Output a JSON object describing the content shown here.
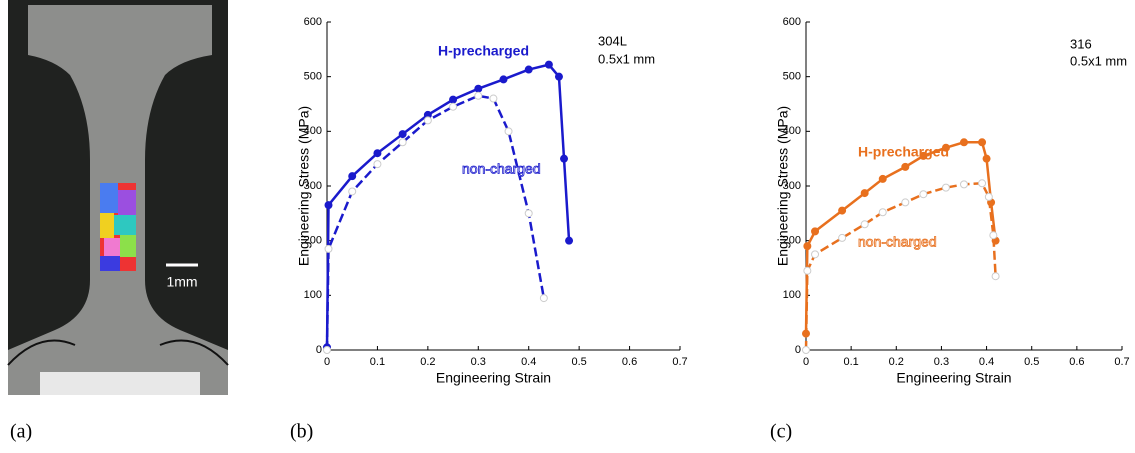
{
  "panel_labels": [
    "(a)",
    "(b)",
    "(c)"
  ],
  "scale_label": "1mm",
  "chart_data": [
    {
      "type": "line",
      "xlabel": "Engineering Strain",
      "ylabel": "Engineering Stress (MPa)",
      "annotations": [
        "304L",
        "0.5x1 mm"
      ],
      "xlim": [
        0,
        0.7
      ],
      "ylim": [
        0,
        600
      ],
      "xticks": [
        0,
        0.1,
        0.2,
        0.3,
        0.4,
        0.5,
        0.6,
        0.7
      ],
      "yticks": [
        0,
        100,
        200,
        300,
        400,
        500,
        600
      ],
      "series": [
        {
          "name": "H-precharged",
          "color": "#1a1acc",
          "style": "solid",
          "marker": "filled",
          "x": [
            0,
            0.003,
            0.05,
            0.1,
            0.15,
            0.2,
            0.25,
            0.3,
            0.35,
            0.4,
            0.44,
            0.46,
            0.47,
            0.48
          ],
          "values": [
            5,
            265,
            318,
            360,
            395,
            430,
            458,
            478,
            495,
            513,
            522,
            500,
            350,
            200
          ]
        },
        {
          "name": "non-charged",
          "color": "#1a1acc",
          "style": "dashed",
          "marker": "open",
          "x": [
            0,
            0.003,
            0.05,
            0.1,
            0.15,
            0.2,
            0.25,
            0.3,
            0.33,
            0.36,
            0.4,
            0.43
          ],
          "values": [
            0,
            185,
            290,
            340,
            380,
            420,
            445,
            465,
            460,
            400,
            250,
            95
          ]
        }
      ]
    },
    {
      "type": "line",
      "xlabel": "Engineering Strain",
      "ylabel": "Engineering Stress (MPa)",
      "annotations": [
        "316",
        "0.5x1 mm"
      ],
      "xlim": [
        0,
        0.7
      ],
      "ylim": [
        0,
        600
      ],
      "xticks": [
        0,
        0.1,
        0.2,
        0.3,
        0.4,
        0.5,
        0.6,
        0.7
      ],
      "yticks": [
        0,
        100,
        200,
        300,
        400,
        500,
        600
      ],
      "series": [
        {
          "name": "H-precharged",
          "color": "#e8701e",
          "style": "solid",
          "marker": "filled",
          "x": [
            0,
            0.003,
            0.02,
            0.08,
            0.13,
            0.17,
            0.22,
            0.26,
            0.31,
            0.35,
            0.39,
            0.4,
            0.41,
            0.42
          ],
          "values": [
            30,
            190,
            217,
            255,
            287,
            313,
            335,
            355,
            370,
            380,
            380,
            350,
            270,
            200
          ]
        },
        {
          "name": "non-charged",
          "color": "#e8701e",
          "style": "dashed",
          "marker": "open",
          "x": [
            0,
            0.003,
            0.02,
            0.08,
            0.13,
            0.17,
            0.22,
            0.26,
            0.31,
            0.35,
            0.39,
            0.405,
            0.415,
            0.42
          ],
          "values": [
            0,
            145,
            175,
            205,
            230,
            252,
            270,
            285,
            297,
            303,
            305,
            280,
            210,
            135
          ]
        }
      ]
    }
  ]
}
